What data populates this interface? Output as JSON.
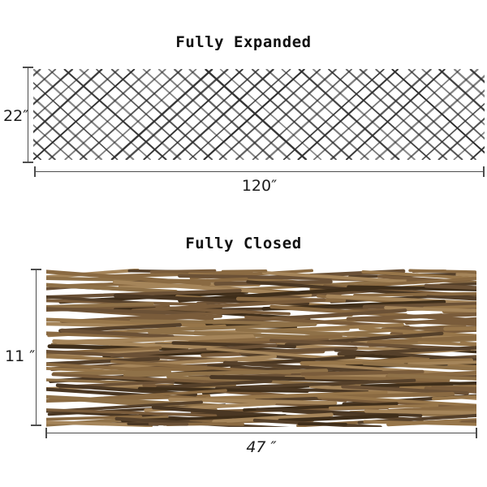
{
  "styles": {
    "background": "#ffffff",
    "title_color": "#111111",
    "dim_line_color": "#4d4d4d",
    "label_color": "#1c1c1c"
  },
  "expanded": {
    "title": "Fully Expanded",
    "height_label": "22″",
    "width_label": "120″",
    "height_in": 22,
    "width_in": 120,
    "pattern": "diamond-lattice-mesh",
    "mesh_line_color": "#2e2e2e"
  },
  "closed": {
    "title": "Fully Closed",
    "height_label": "11 ″",
    "width_label": "47 ″",
    "height_in": 11,
    "width_in": 47,
    "pattern": "woven-willow-sticks",
    "stick_colors": [
      "#3f2e1a",
      "#55402a",
      "#6b5136",
      "#7a5c3b",
      "#8a6a42",
      "#97764a",
      "#a5855a",
      "#4a3723",
      "#8f7148"
    ]
  }
}
